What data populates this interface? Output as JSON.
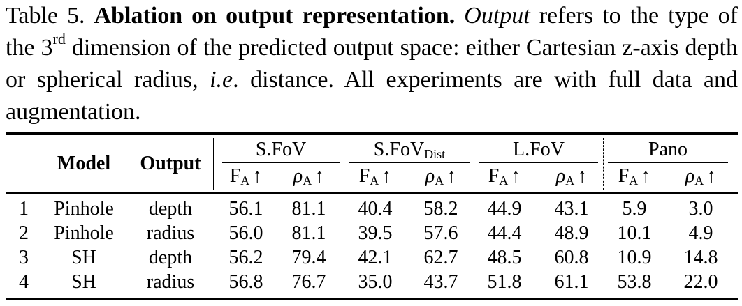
{
  "caption": {
    "label": "Table 5.",
    "title": "Ablation on output representation.",
    "s1": "Output",
    "s2": " refers to the type of the 3",
    "s3": "rd",
    "s4": " dimension of the predicted output space: either Cartesian z-axis depth or spherical radius, ",
    "s5": "i.e",
    "s6": ". distance. All experiments are with full data and augmentation."
  },
  "headers": {
    "model": "Model",
    "output": "Output",
    "groups": [
      {
        "name": "S.FoV",
        "sub": ""
      },
      {
        "name": "S.FoV",
        "sub": "Dist"
      },
      {
        "name": "L.FoV",
        "sub": ""
      },
      {
        "name": "Pano",
        "sub": ""
      }
    ],
    "metric_f": "F",
    "metric_f_sub": "A",
    "metric_rho": "ρ",
    "metric_rho_sub": "A",
    "arrow": "↑"
  },
  "rows": [
    {
      "idx": "1",
      "model": "Pinhole",
      "output": "depth",
      "vals": [
        "56.1",
        "81.1",
        "40.4",
        "58.2",
        "44.9",
        "43.1",
        "5.9",
        "3.0"
      ]
    },
    {
      "idx": "2",
      "model": "Pinhole",
      "output": "radius",
      "vals": [
        "56.0",
        "81.1",
        "39.5",
        "57.6",
        "44.4",
        "48.9",
        "10.1",
        "4.9"
      ]
    },
    {
      "idx": "3",
      "model": "SH",
      "output": "depth",
      "vals": [
        "56.2",
        "79.4",
        "42.1",
        "62.7",
        "48.5",
        "60.8",
        "10.9",
        "14.8"
      ]
    },
    {
      "idx": "4",
      "model": "SH",
      "output": "radius",
      "vals": [
        "56.8",
        "76.7",
        "35.0",
        "43.7",
        "51.8",
        "61.1",
        "53.8",
        "22.0"
      ]
    }
  ]
}
